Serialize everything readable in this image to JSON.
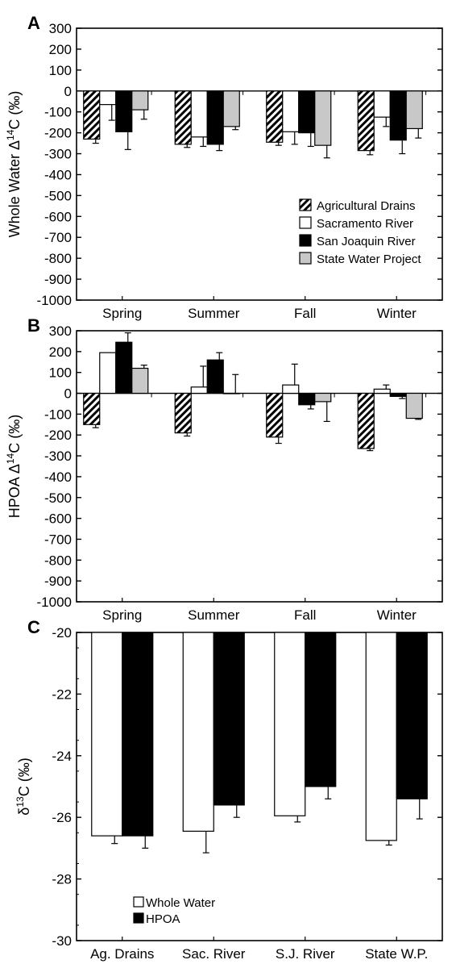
{
  "chart_data": [
    {
      "panel": "A",
      "type": "bar",
      "title": "",
      "ylabel": "Whole Water Δ14C (‰)",
      "ylabel_parts": {
        "pre": "Whole Water Δ",
        "sup": "14",
        "post": "C (‰)"
      },
      "xlabel": "",
      "ylim": [
        -1000,
        300
      ],
      "ytick_labels": [
        "300",
        "200",
        "100",
        "0",
        "-100",
        "-200",
        "-300",
        "-400",
        "-500",
        "-600",
        "-700",
        "-800",
        "-900",
        "-1000"
      ],
      "categories": [
        "Spring",
        "Summer",
        "Fall",
        "Winter"
      ],
      "series": [
        {
          "name": "Agricultural Drains",
          "values": [
            -230,
            -255,
            -245,
            -285
          ],
          "err": [
            20,
            15,
            15,
            20
          ]
        },
        {
          "name": "Sacramento River",
          "values": [
            -65,
            -220,
            -195,
            -125
          ],
          "err": [
            75,
            45,
            60,
            45
          ]
        },
        {
          "name": "San Joaquin River",
          "values": [
            -195,
            -255,
            -200,
            -235
          ],
          "err": [
            85,
            30,
            65,
            65
          ]
        },
        {
          "name": "State Water Project",
          "values": [
            -90,
            -170,
            -260,
            -180
          ],
          "err": [
            45,
            15,
            60,
            45
          ]
        }
      ],
      "legend": "bottom-right",
      "grid": false
    },
    {
      "panel": "B",
      "type": "bar",
      "title": "",
      "ylabel": "HPOA Δ14C (‰)",
      "ylabel_parts": {
        "pre": "HPOA Δ",
        "sup": "14",
        "post": "C (‰)"
      },
      "xlabel": "",
      "ylim": [
        -1000,
        300
      ],
      "ytick_labels": [
        "300",
        "200",
        "100",
        "0",
        "-100",
        "-200",
        "-300",
        "-400",
        "-500",
        "-600",
        "-700",
        "-800",
        "-900",
        "-1000"
      ],
      "categories": [
        "Spring",
        "Summer",
        "Fall",
        "Winter"
      ],
      "series": [
        {
          "name": "Agricultural Drains",
          "values": [
            -150,
            -190,
            -210,
            -265
          ],
          "err": [
            15,
            15,
            30,
            10
          ]
        },
        {
          "name": "Sacramento River",
          "values": [
            195,
            30,
            40,
            20
          ],
          "err": [
            0,
            100,
            100,
            20
          ]
        },
        {
          "name": "San Joaquin River",
          "values": [
            245,
            160,
            -55,
            -15
          ],
          "err": [
            45,
            35,
            20,
            10
          ]
        },
        {
          "name": "State Water Project",
          "values": [
            120,
            0,
            -40,
            -120
          ],
          "err": [
            15,
            90,
            95,
            5
          ]
        }
      ],
      "legend": "none",
      "grid": false
    },
    {
      "panel": "C",
      "type": "bar",
      "title": "",
      "ylabel": "δ13C (‰)",
      "ylabel_parts": {
        "pre": "δ",
        "sup": "13",
        "post": "C (‰)"
      },
      "xlabel": "",
      "ylim": [
        -30,
        -20
      ],
      "ytick_labels": [
        "-20",
        "-22",
        "-24",
        "-26",
        "-28",
        "-30"
      ],
      "categories": [
        "Ag. Drains",
        "Sac. River",
        "S.J. River",
        "State W.P."
      ],
      "series": [
        {
          "name": "Whole Water",
          "values": [
            -26.6,
            -26.45,
            -25.95,
            -26.75
          ],
          "err": [
            0.25,
            0.7,
            0.2,
            0.15
          ]
        },
        {
          "name": "HPOA",
          "values": [
            -26.6,
            -25.6,
            -25.0,
            -25.4
          ],
          "err": [
            0.4,
            0.4,
            0.4,
            0.65
          ]
        }
      ],
      "legend": "bottom-left",
      "grid": false
    }
  ],
  "colors": {
    "agricultural_drains": "hatched",
    "sacramento_river": "#ffffff",
    "san_joaquin_river": "#000000",
    "state_water_project": "#c8c8c8",
    "whole_water": "#ffffff",
    "hpoa": "#000000"
  }
}
